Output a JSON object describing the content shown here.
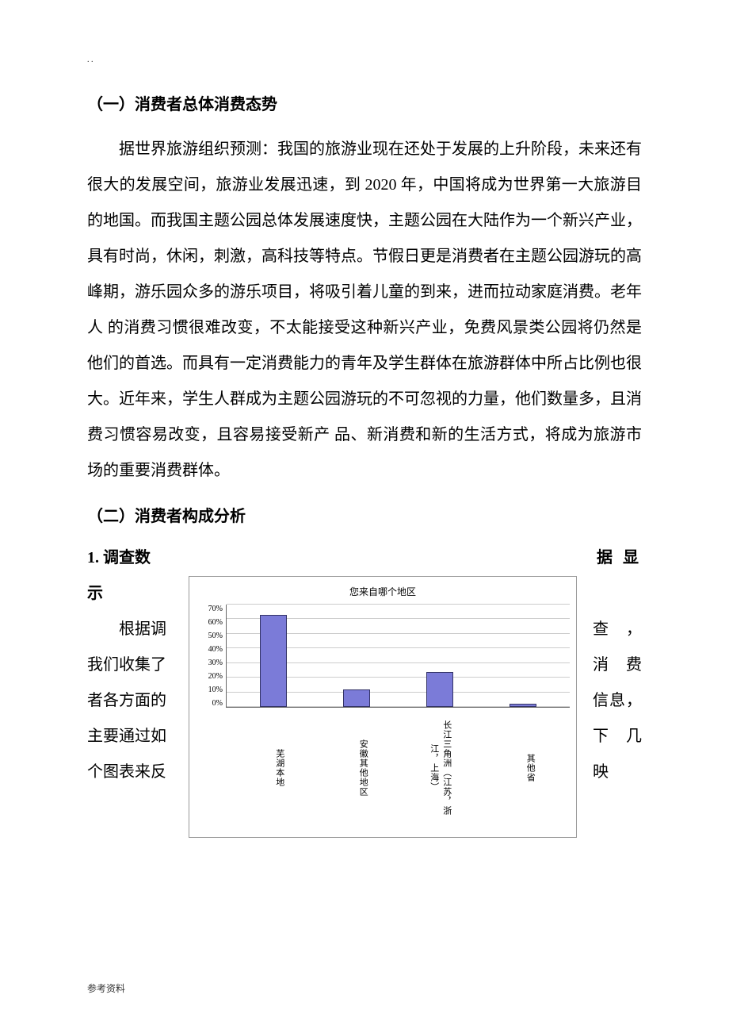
{
  "dots": ". .",
  "section1": {
    "heading": "（一）消费者总体消费态势",
    "body": "据世界旅游组织预测：我国的旅游业现在还处于发展的上升阶段，未来还有很大的发展空间，旅游业发展迅速，到 2020 年，中国将成为世界第一大旅游目的地国。而我国主题公园总体发展速度快，主题公园在大陆作为一个新兴产业，具有时尚，休闲，刺激，高科技等特点。节假日更是消费者在主题公园游玩的高峰期，游乐园众多的游乐项目，将吸引着儿童的到来，进而拉动家庭消费。老年人 的消费习惯很难改变，不太能接受这种新兴产业，免费风景类公园将仍然是他们的首选。而具有一定消费能力的青年及学生群体在旅游群体中所占比例也很大。近年来，学生人群成为主题公园游玩的不可忽视的力量，他们数量多，且消费习惯容易改变，且容易接受新产 品、新消费和新的生活方式，将成为旅游市场的重要消费群体。"
  },
  "section2": {
    "heading": "（二）消费者构成分析",
    "sub_heading_left": "1. 调查数",
    "sub_heading_right": "据 显",
    "show_text": "示",
    "left_lines": [
      "根据调",
      "我们收集了",
      "者各方面的",
      "主要通过如",
      "个图表来反"
    ],
    "right_lines": [
      "查，",
      "消费",
      "信息，",
      "下几",
      "映"
    ]
  },
  "chart": {
    "type": "bar",
    "title": "您来自哪个地区",
    "categories": [
      "芜湖本地",
      "安徽其他地区",
      "长江三角洲（江苏，浙江，上海）",
      "其他省"
    ],
    "values": [
      63,
      12,
      24,
      2
    ],
    "ylim_max": 70,
    "ytick_step": 10,
    "y_labels": [
      "70%",
      "60%",
      "50%",
      "40%",
      "30%",
      "20%",
      "10%",
      "0%"
    ],
    "bar_color": "#7b7bd8",
    "bar_border": "#333366",
    "grid_color": "#cccccc",
    "axis_color": "#666666",
    "background_color": "#ffffff",
    "title_fontsize": 12,
    "label_fontsize": 10
  },
  "footer": "参考资料"
}
